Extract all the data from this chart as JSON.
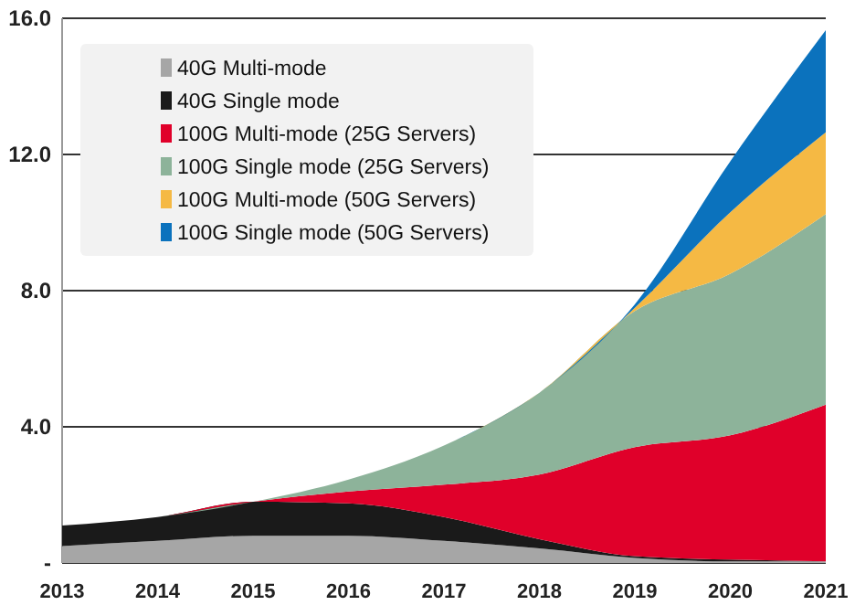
{
  "chart_data": {
    "type": "area",
    "stacked": true,
    "categories": [
      "2013",
      "2014",
      "2015",
      "2016",
      "2017",
      "2018",
      "2019",
      "2020",
      "2021"
    ],
    "series": [
      {
        "name": "40G Multi-mode",
        "color": "#a6a6a6",
        "values": [
          0.5,
          0.65,
          0.8,
          0.8,
          0.65,
          0.43,
          0.15,
          0.05,
          0.05
        ]
      },
      {
        "name": "40G Single mode",
        "color": "#1a1a1a",
        "values": [
          0.6,
          0.7,
          1.0,
          0.95,
          0.7,
          0.27,
          0.05,
          0.05,
          0
        ]
      },
      {
        "name": "100G Multi-mode (25G Servers)",
        "color": "#e0002a",
        "values": [
          0,
          0,
          0,
          0.35,
          0.95,
          1.9,
          3.2,
          3.65,
          4.6
        ]
      },
      {
        "name": "100G Single mode  (25G Servers)",
        "color": "#8db39a",
        "values": [
          0,
          0,
          0,
          0.35,
          1.15,
          2.4,
          4.0,
          4.75,
          5.6
        ]
      },
      {
        "name": "100G Multi-mode (50G Servers)",
        "color": "#f5b944",
        "values": [
          0,
          0,
          0,
          0,
          0,
          0,
          0.1,
          1.8,
          2.4
        ]
      },
      {
        "name": "100G Single mode (50G Servers)",
        "color": "#0b72bd",
        "values": [
          0,
          0,
          0,
          0,
          0,
          0,
          0.1,
          1.5,
          3.0
        ]
      }
    ],
    "ylim": [
      0,
      16
    ],
    "yticks": [
      {
        "value": 0,
        "label": "-"
      },
      {
        "value": 4,
        "label": "4.0"
      },
      {
        "value": 8,
        "label": "8.0"
      },
      {
        "value": 12,
        "label": "12.0"
      },
      {
        "value": 16,
        "label": "16.0"
      }
    ],
    "grid": "y",
    "legend": "top left"
  }
}
